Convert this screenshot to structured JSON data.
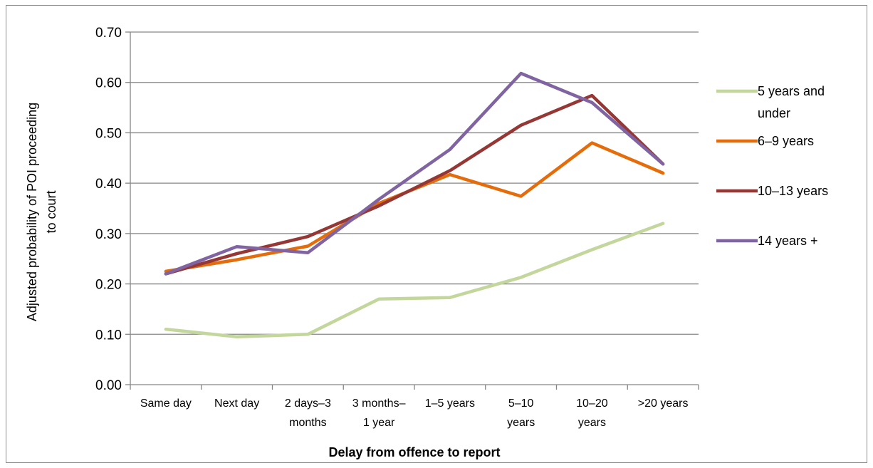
{
  "chart_data": {
    "type": "line",
    "title": "",
    "xlabel": "Delay from offence to report",
    "ylabel": "Adjusted probability of POI proceeding to court",
    "ylim": [
      0,
      0.7
    ],
    "ytick_step": 0.1,
    "ytick_labels": [
      "0.00",
      "0.10",
      "0.20",
      "0.30",
      "0.40",
      "0.50",
      "0.60",
      "0.70"
    ],
    "grid": true,
    "legend_position": "right",
    "categories": [
      "Same day",
      "Next day",
      "2 days–3 months",
      "3 months–1 year",
      "1–5 years",
      "5–10 years",
      "10–20 years",
      ">20 years"
    ],
    "category_labels": [
      [
        "Same day"
      ],
      [
        "Next day"
      ],
      [
        "2 days–3",
        "months"
      ],
      [
        "3 months–",
        "1 year"
      ],
      [
        "1–5 years"
      ],
      [
        "5–10",
        "years"
      ],
      [
        "10–20",
        "years"
      ],
      [
        ">20 years"
      ]
    ],
    "series": [
      {
        "name": "5 years and under",
        "legend_lines": [
          "5 years and",
          "under"
        ],
        "color": "#c3d69b",
        "values": [
          0.11,
          0.095,
          0.1,
          0.17,
          0.173,
          0.213,
          0.268,
          0.32
        ]
      },
      {
        "name": "6–9 years",
        "legend_lines": [
          "6–9 years"
        ],
        "color": "#e46c0a",
        "values": [
          0.225,
          0.248,
          0.275,
          0.36,
          0.417,
          0.374,
          0.48,
          0.42
        ]
      },
      {
        "name": "10–13 years",
        "legend_lines": [
          "10–13 years"
        ],
        "color": "#953735",
        "values": [
          0.22,
          0.26,
          0.294,
          0.355,
          0.425,
          0.515,
          0.574,
          0.438
        ]
      },
      {
        "name": "14 years +",
        "legend_lines": [
          "14 years +"
        ],
        "color": "#8064a2",
        "values": [
          0.22,
          0.274,
          0.262,
          0.368,
          0.467,
          0.618,
          0.56,
          0.438
        ]
      }
    ]
  }
}
